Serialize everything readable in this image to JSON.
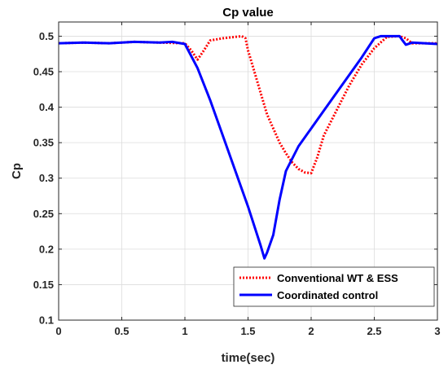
{
  "chart_data": {
    "type": "line",
    "title": "Cp value",
    "xlabel": "time(sec)",
    "ylabel": "Cp",
    "xlim": [
      0,
      3
    ],
    "ylim": [
      0.1,
      0.52
    ],
    "xticks": [
      0,
      0.5,
      1,
      1.5,
      2,
      2.5,
      3
    ],
    "xtick_labels": [
      "0",
      "0.5",
      "1",
      "1.5",
      "2",
      "2.5",
      "3"
    ],
    "yticks": [
      0.1,
      0.15,
      0.2,
      0.25,
      0.3,
      0.35,
      0.4,
      0.45,
      0.5
    ],
    "ytick_labels": [
      "0.1",
      "0.15",
      "0.2",
      "0.25",
      "0.3",
      "0.35",
      "0.4",
      "0.45",
      "0.5"
    ],
    "grid": true,
    "legend_position": "bottom-right",
    "series": [
      {
        "name": "Conventional WT & ESS",
        "color": "#ff0000",
        "style": "dotted",
        "x": [
          0,
          0.2,
          0.4,
          0.6,
          0.8,
          1.0,
          1.05,
          1.1,
          1.15,
          1.2,
          1.3,
          1.4,
          1.45,
          1.48,
          1.5,
          1.55,
          1.6,
          1.65,
          1.7,
          1.75,
          1.8,
          1.85,
          1.9,
          1.95,
          2.0,
          2.05,
          2.1,
          2.2,
          2.3,
          2.4,
          2.5,
          2.6,
          2.7,
          2.75,
          2.8,
          2.9,
          3.0
        ],
        "y": [
          0.49,
          0.491,
          0.49,
          0.492,
          0.491,
          0.49,
          0.48,
          0.467,
          0.48,
          0.494,
          0.497,
          0.499,
          0.5,
          0.497,
          0.48,
          0.45,
          0.42,
          0.39,
          0.37,
          0.35,
          0.335,
          0.322,
          0.313,
          0.308,
          0.307,
          0.33,
          0.36,
          0.395,
          0.43,
          0.46,
          0.483,
          0.499,
          0.5,
          0.497,
          0.49,
          0.49,
          0.49
        ]
      },
      {
        "name": "Coordinated control",
        "color": "#0000ff",
        "style": "solid",
        "x": [
          0,
          0.2,
          0.4,
          0.6,
          0.8,
          0.9,
          1.0,
          1.1,
          1.2,
          1.3,
          1.4,
          1.5,
          1.6,
          1.63,
          1.65,
          1.7,
          1.75,
          1.8,
          1.9,
          2.0,
          2.1,
          2.2,
          2.3,
          2.4,
          2.5,
          2.55,
          2.6,
          2.65,
          2.7,
          2.72,
          2.75,
          2.8,
          2.9,
          3.0
        ],
        "y": [
          0.49,
          0.491,
          0.49,
          0.492,
          0.491,
          0.492,
          0.489,
          0.455,
          0.41,
          0.36,
          0.31,
          0.26,
          0.205,
          0.187,
          0.195,
          0.22,
          0.27,
          0.31,
          0.345,
          0.37,
          0.395,
          0.42,
          0.445,
          0.47,
          0.497,
          0.5,
          0.5,
          0.5,
          0.5,
          0.495,
          0.488,
          0.491,
          0.49,
          0.489
        ]
      }
    ]
  }
}
